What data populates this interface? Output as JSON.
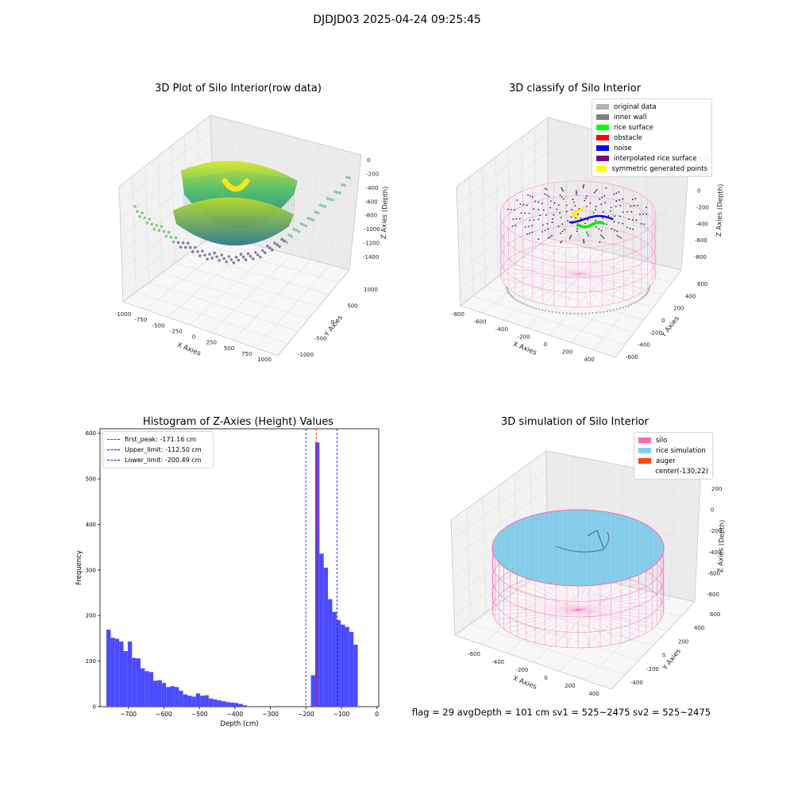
{
  "suptitle": "DJDJD03 2025-04-24 09:25:45",
  "footer": "flag = 29  avgDepth = 101 cm  sv1 = 525~2475  sv2 = 525~2475",
  "chart_data": [
    {
      "type": "scatter",
      "title": "3D Plot of Silo Interior(row data)",
      "xlabel": "X Axies",
      "ylabel": "Y Axies",
      "zlabel": "Z Axies (Depth)",
      "xticks": [
        "-1000",
        "-750",
        "-500",
        "-250",
        "0",
        "250",
        "500",
        "750",
        "1000"
      ],
      "yticks": [
        "-1000",
        "-500",
        "0",
        "500",
        "1000"
      ],
      "zticks": [
        "0",
        "-200",
        "-400",
        "-600",
        "-800",
        "-1000",
        "-1200",
        "-1400"
      ],
      "grid": true
    },
    {
      "type": "scatter",
      "title": "3D classify of Silo Interior",
      "xlabel": "X Axies",
      "ylabel": "Y Axies",
      "zlabel": "Z Axies (Depth)",
      "xticks": [
        "-800",
        "-600",
        "-400",
        "-200",
        "0",
        "200",
        "400"
      ],
      "yticks": [
        "-600",
        "-400",
        "-200",
        "0",
        "200",
        "400",
        "600"
      ],
      "zticks": [
        "400",
        "200",
        "0",
        "-200",
        "-400",
        "-600",
        "-800"
      ],
      "legend": [
        {
          "label": "original data",
          "color": "#b3b3b3"
        },
        {
          "label": "inner wall",
          "color": "#808080"
        },
        {
          "label": "rice surface",
          "color": "#00ff00"
        },
        {
          "label": "obstacle",
          "color": "#ff0000"
        },
        {
          "label": "noise",
          "color": "#0000ff"
        },
        {
          "label": "interpolated rice surface",
          "color": "#800080"
        },
        {
          "label": "symmetric generated points",
          "color": "#ffff00"
        }
      ],
      "legend_position": "top-right",
      "grid": true
    },
    {
      "type": "bar",
      "title": "Histogram of Z-Axies (Height) Values",
      "xlabel": "Depth (cm)",
      "ylabel": "Frequency",
      "xlim": [
        -780,
        5
      ],
      "ylim": [
        0,
        610
      ],
      "xticks": [
        -700,
        -600,
        -500,
        -400,
        -300,
        -200,
        -100,
        0
      ],
      "yticks": [
        0,
        100,
        200,
        300,
        400,
        500,
        600
      ],
      "bin_width": 12,
      "bins": [
        {
          "x": -762,
          "y": 169
        },
        {
          "x": -750,
          "y": 151
        },
        {
          "x": -738,
          "y": 149
        },
        {
          "x": -726,
          "y": 143
        },
        {
          "x": -714,
          "y": 122
        },
        {
          "x": -702,
          "y": 143
        },
        {
          "x": -690,
          "y": 107
        },
        {
          "x": -678,
          "y": 106
        },
        {
          "x": -666,
          "y": 84
        },
        {
          "x": -654,
          "y": 78
        },
        {
          "x": -642,
          "y": 76
        },
        {
          "x": -630,
          "y": 57
        },
        {
          "x": -618,
          "y": 58
        },
        {
          "x": -606,
          "y": 52
        },
        {
          "x": -594,
          "y": 43
        },
        {
          "x": -582,
          "y": 45
        },
        {
          "x": -570,
          "y": 43
        },
        {
          "x": -558,
          "y": 35
        },
        {
          "x": -546,
          "y": 27
        },
        {
          "x": -534,
          "y": 24
        },
        {
          "x": -522,
          "y": 22
        },
        {
          "x": -510,
          "y": 29
        },
        {
          "x": -498,
          "y": 24
        },
        {
          "x": -486,
          "y": 25
        },
        {
          "x": -474,
          "y": 18
        },
        {
          "x": -462,
          "y": 16
        },
        {
          "x": -450,
          "y": 14
        },
        {
          "x": -438,
          "y": 12
        },
        {
          "x": -426,
          "y": 10
        },
        {
          "x": -414,
          "y": 9
        },
        {
          "x": -402,
          "y": 8
        },
        {
          "x": -390,
          "y": 6
        },
        {
          "x": -378,
          "y": 3
        },
        {
          "x": -186,
          "y": 69
        },
        {
          "x": -174,
          "y": 580
        },
        {
          "x": -162,
          "y": 336
        },
        {
          "x": -150,
          "y": 305
        },
        {
          "x": -138,
          "y": 236
        },
        {
          "x": -126,
          "y": 208
        },
        {
          "x": -114,
          "y": 190
        },
        {
          "x": -102,
          "y": 180
        },
        {
          "x": -90,
          "y": 175
        },
        {
          "x": -78,
          "y": 164
        },
        {
          "x": -66,
          "y": 136
        }
      ],
      "vlines": [
        {
          "label": "first_peak: -171.16 cm",
          "x": -171.16,
          "color": "#ff0000"
        },
        {
          "label": "Upper_limit: -112.50 cm",
          "x": -112.5,
          "color": "#0000ff"
        },
        {
          "label": "Lower_limit: -200.49 cm",
          "x": -200.49,
          "color": "#0000ff"
        }
      ],
      "bar_color": "#4b4bff",
      "legend_position": "top-left"
    },
    {
      "type": "scatter",
      "title": "3D simulation of Silo Interior",
      "xlabel": "X Axies",
      "ylabel": "Y Axies",
      "zlabel": "Z Axies (Depth)",
      "xticks": [
        "-600",
        "-400",
        "-200",
        "0",
        "200",
        "400"
      ],
      "yticks": [
        "-400",
        "-200",
        "0",
        "200",
        "400",
        "600"
      ],
      "zticks": [
        "200",
        "0",
        "-200",
        "-400",
        "-600",
        "-800"
      ],
      "legend": [
        {
          "label": "silo",
          "color": "#ff69b4"
        },
        {
          "label": "rice simulation",
          "color": "#87ceeb"
        },
        {
          "label": "auger",
          "color": "#ff4500"
        },
        {
          "label": "center(-130,22)",
          "color": ""
        }
      ],
      "legend_position": "top-right",
      "grid": true
    }
  ]
}
